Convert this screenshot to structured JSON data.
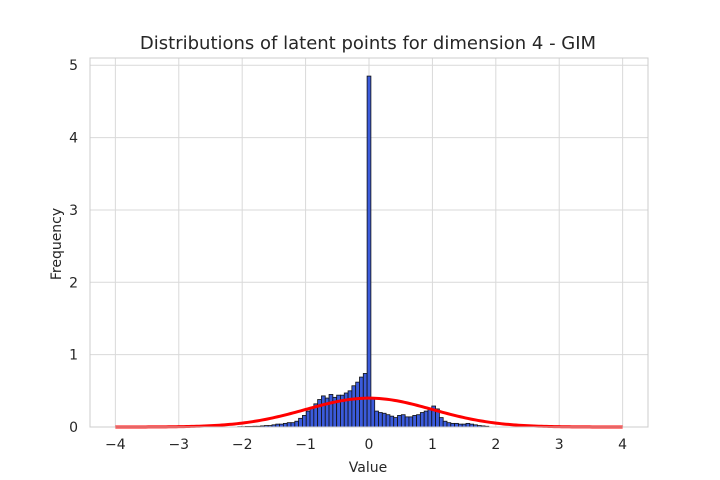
{
  "chart_data": {
    "type": "bar",
    "title": "Distributions of latent points for dimension 4 - GIM",
    "xlabel": "Value",
    "ylabel": "Frequency",
    "xlim": [
      -4.4,
      4.4
    ],
    "ylim": [
      0,
      5.1
    ],
    "xticks": [
      -4,
      -3,
      -2,
      -1,
      0,
      1,
      2,
      3,
      4
    ],
    "yticks": [
      0,
      1,
      2,
      3,
      4,
      5
    ],
    "grid": true,
    "colors": {
      "bar_fill": "#3b5bdb",
      "bar_edge": "#111111",
      "curve": "#ff0000",
      "grid": "#d9d9d9",
      "frame": "#cccccc"
    },
    "histogram": {
      "bin_width": 0.06,
      "bins": [
        {
          "x": -2.04,
          "y": 0.005
        },
        {
          "x": -1.98,
          "y": 0.005
        },
        {
          "x": -1.92,
          "y": 0.008
        },
        {
          "x": -1.86,
          "y": 0.008
        },
        {
          "x": -1.8,
          "y": 0.01
        },
        {
          "x": -1.74,
          "y": 0.01
        },
        {
          "x": -1.68,
          "y": 0.015
        },
        {
          "x": -1.62,
          "y": 0.02
        },
        {
          "x": -1.56,
          "y": 0.02
        },
        {
          "x": -1.5,
          "y": 0.03
        },
        {
          "x": -1.44,
          "y": 0.04
        },
        {
          "x": -1.38,
          "y": 0.04
        },
        {
          "x": -1.32,
          "y": 0.05
        },
        {
          "x": -1.26,
          "y": 0.06
        },
        {
          "x": -1.2,
          "y": 0.06
        },
        {
          "x": -1.14,
          "y": 0.08
        },
        {
          "x": -1.08,
          "y": 0.12
        },
        {
          "x": -1.02,
          "y": 0.16
        },
        {
          "x": -0.96,
          "y": 0.22
        },
        {
          "x": -0.9,
          "y": 0.27
        },
        {
          "x": -0.84,
          "y": 0.32
        },
        {
          "x": -0.78,
          "y": 0.38
        },
        {
          "x": -0.72,
          "y": 0.43
        },
        {
          "x": -0.66,
          "y": 0.4
        },
        {
          "x": -0.6,
          "y": 0.45
        },
        {
          "x": -0.54,
          "y": 0.41
        },
        {
          "x": -0.48,
          "y": 0.44
        },
        {
          "x": -0.42,
          "y": 0.44
        },
        {
          "x": -0.36,
          "y": 0.47
        },
        {
          "x": -0.3,
          "y": 0.5
        },
        {
          "x": -0.24,
          "y": 0.57
        },
        {
          "x": -0.18,
          "y": 0.62
        },
        {
          "x": -0.12,
          "y": 0.69
        },
        {
          "x": -0.06,
          "y": 0.74
        },
        {
          "x": 0.0,
          "y": 4.85
        },
        {
          "x": 0.06,
          "y": 0.4
        },
        {
          "x": 0.12,
          "y": 0.22
        },
        {
          "x": 0.18,
          "y": 0.2
        },
        {
          "x": 0.24,
          "y": 0.19
        },
        {
          "x": 0.3,
          "y": 0.17
        },
        {
          "x": 0.36,
          "y": 0.15
        },
        {
          "x": 0.42,
          "y": 0.13
        },
        {
          "x": 0.48,
          "y": 0.16
        },
        {
          "x": 0.54,
          "y": 0.17
        },
        {
          "x": 0.6,
          "y": 0.14
        },
        {
          "x": 0.66,
          "y": 0.14
        },
        {
          "x": 0.72,
          "y": 0.16
        },
        {
          "x": 0.78,
          "y": 0.17
        },
        {
          "x": 0.84,
          "y": 0.2
        },
        {
          "x": 0.9,
          "y": 0.22
        },
        {
          "x": 0.96,
          "y": 0.26
        },
        {
          "x": 1.02,
          "y": 0.29
        },
        {
          "x": 1.08,
          "y": 0.25
        },
        {
          "x": 1.14,
          "y": 0.13
        },
        {
          "x": 1.2,
          "y": 0.08
        },
        {
          "x": 1.26,
          "y": 0.06
        },
        {
          "x": 1.32,
          "y": 0.05
        },
        {
          "x": 1.38,
          "y": 0.05
        },
        {
          "x": 1.44,
          "y": 0.04
        },
        {
          "x": 1.5,
          "y": 0.04
        },
        {
          "x": 1.56,
          "y": 0.05
        },
        {
          "x": 1.62,
          "y": 0.04
        },
        {
          "x": 1.68,
          "y": 0.03
        },
        {
          "x": 1.74,
          "y": 0.02
        },
        {
          "x": 1.8,
          "y": 0.015
        },
        {
          "x": 1.86,
          "y": 0.01
        }
      ]
    },
    "curve": {
      "type": "normal_pdf",
      "mean": 0.0,
      "std": 1.0,
      "x_range": [
        -4.0,
        4.0
      ],
      "y_at_mean": 0.399
    }
  }
}
